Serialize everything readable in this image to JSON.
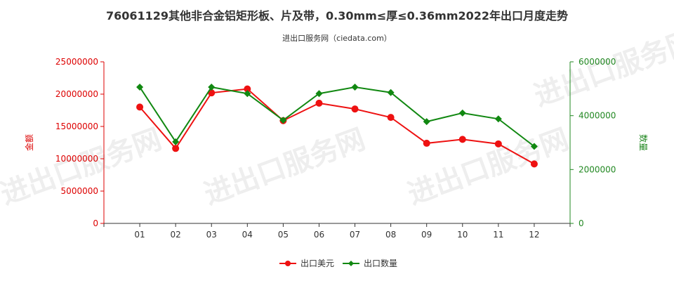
{
  "chart_data": {
    "type": "line",
    "title": "76061129其他非合金铝矩形板、片及带，0.30mm≤厚≤0.36mm2022年出口月度走势",
    "subtitle": "进出口服务网（ciedata.com）",
    "watermark": "进出口服务网",
    "categories": [
      "01",
      "02",
      "03",
      "04",
      "05",
      "06",
      "07",
      "08",
      "09",
      "10",
      "11",
      "12"
    ],
    "y_left": {
      "label": "金额",
      "ylim": [
        0,
        25000000
      ],
      "ticks": [
        "0",
        "5000000",
        "10000000",
        "15000000",
        "20000000",
        "25000000"
      ],
      "color": "#dd0000"
    },
    "y_right": {
      "label": "数量",
      "ylim": [
        0,
        6000000
      ],
      "ticks": [
        "0",
        "2000000",
        "4000000",
        "6000000"
      ],
      "color": "#228822"
    },
    "series": [
      {
        "name": "出口美元",
        "axis": "left",
        "color": "#ee1111",
        "marker": "circle",
        "values": [
          18000000,
          11600000,
          20200000,
          20800000,
          15900000,
          18600000,
          17700000,
          16400000,
          12400000,
          13000000,
          12300000,
          9200000
        ]
      },
      {
        "name": "出口数量",
        "axis": "right",
        "color": "#118811",
        "marker": "diamond",
        "values": [
          5060000,
          3030000,
          5060000,
          4820000,
          3830000,
          4820000,
          5060000,
          4860000,
          3780000,
          4100000,
          3880000,
          2860000
        ]
      }
    ],
    "legend_position": "bottom-center",
    "grid": false
  }
}
